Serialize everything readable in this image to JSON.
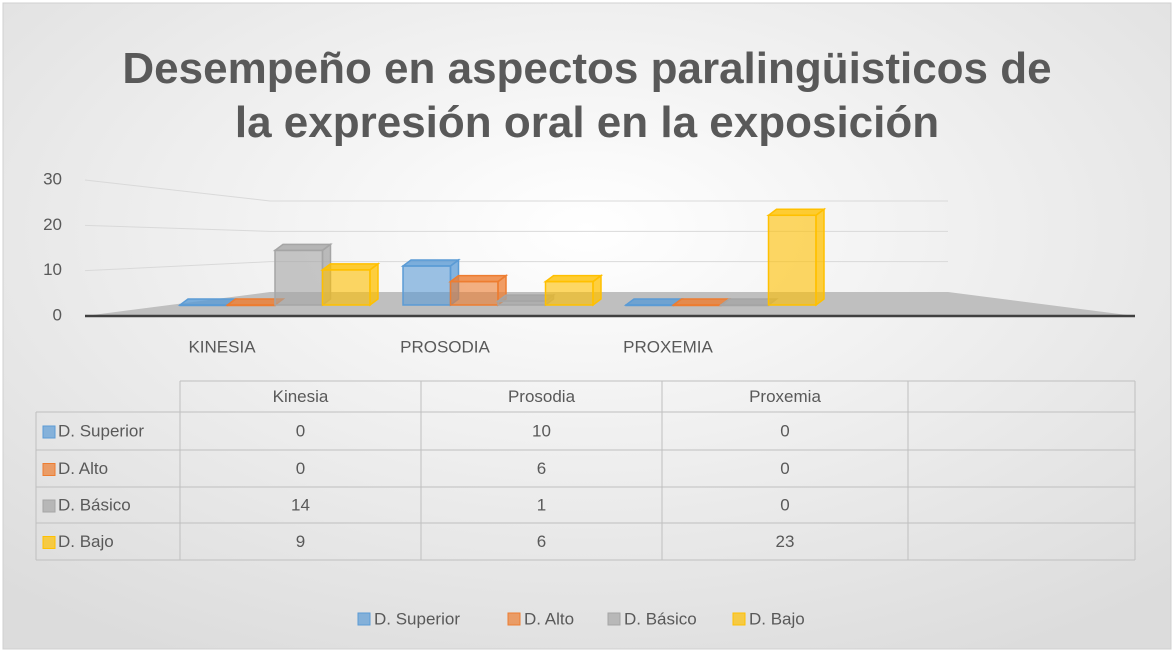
{
  "chart_data": {
    "type": "bar3d",
    "title": "Desempeño en aspectos paralingüisticos de la expresión oral en la exposición",
    "categories": [
      "KINESIA",
      "PROSODIA",
      "PROXEMIA"
    ],
    "table_columns": [
      "Kinesia",
      "Prosodia",
      "Proxemia"
    ],
    "series": [
      {
        "name": "D. Superior",
        "color": "#5b9bd5",
        "values": [
          0,
          10,
          0
        ]
      },
      {
        "name": "D. Alto",
        "color": "#ed7d31",
        "values": [
          0,
          6,
          0
        ]
      },
      {
        "name": "D. Básico",
        "color": "#a5a5a5",
        "values": [
          14,
          1,
          0
        ]
      },
      {
        "name": "D. Bajo",
        "color": "#ffc000",
        "values": [
          9,
          6,
          23
        ]
      }
    ],
    "ylim": [
      0,
      30
    ],
    "yticks": [
      0,
      10,
      20,
      30
    ],
    "grid": true,
    "legend": "bottom"
  }
}
